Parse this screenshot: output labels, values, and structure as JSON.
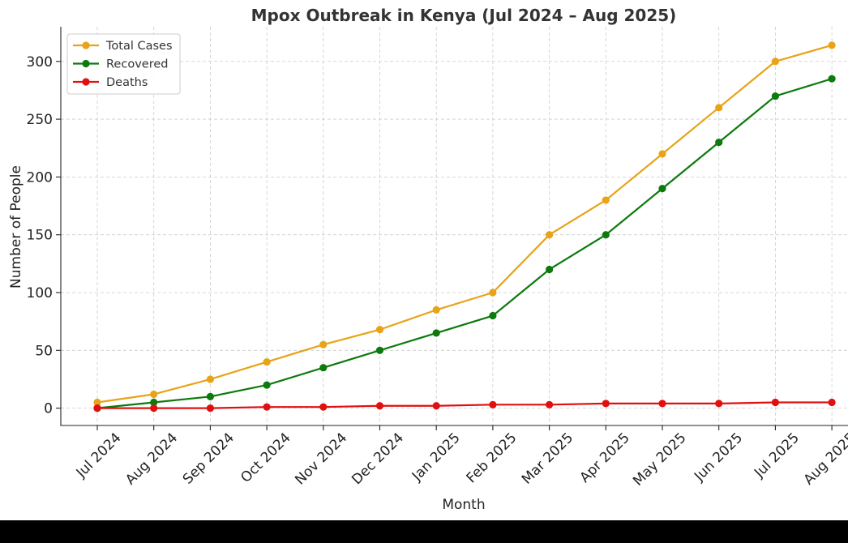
{
  "chart_data": {
    "type": "line",
    "title": "Mpox Outbreak in Kenya (Jul 2024 – Aug 2025)",
    "xlabel": "Month",
    "ylabel": "Number of People",
    "categories": [
      "Jul 2024",
      "Aug 2024",
      "Sep 2024",
      "Oct 2024",
      "Nov 2024",
      "Dec 2024",
      "Jan 2025",
      "Feb 2025",
      "Mar 2025",
      "Apr 2025",
      "May 2025",
      "Jun 2025",
      "Jul 2025",
      "Aug 2025"
    ],
    "ylim": [
      -15,
      330
    ],
    "yticks": [
      0,
      50,
      100,
      150,
      200,
      250,
      300
    ],
    "grid": true,
    "legend_position": "top-left",
    "series": [
      {
        "name": "Total Cases",
        "color": "#e8a317",
        "values": [
          5,
          12,
          25,
          40,
          55,
          68,
          85,
          100,
          150,
          180,
          220,
          260,
          300,
          314
        ]
      },
      {
        "name": "Recovered",
        "color": "#0c7a0c",
        "values": [
          0,
          5,
          10,
          20,
          35,
          50,
          65,
          80,
          120,
          150,
          190,
          230,
          270,
          285
        ]
      },
      {
        "name": "Deaths",
        "color": "#e01010",
        "values": [
          0,
          0,
          0,
          1,
          1,
          2,
          2,
          3,
          3,
          4,
          4,
          4,
          5,
          5
        ]
      }
    ]
  }
}
